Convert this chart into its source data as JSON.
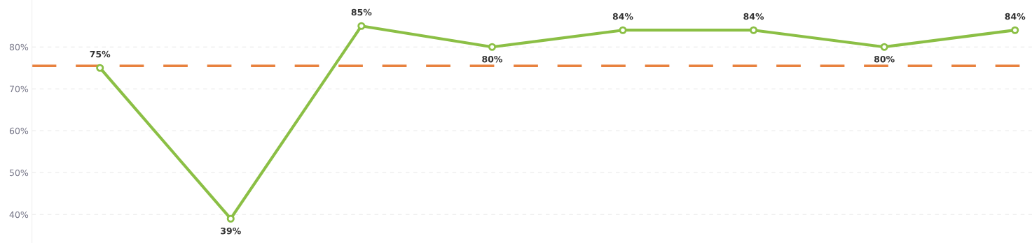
{
  "chart_data": {
    "type": "line",
    "categories": [
      null,
      null,
      null,
      null,
      null,
      null,
      null,
      null
    ],
    "series": [
      {
        "color": "#8bbf45",
        "values": [
          75,
          39,
          85,
          80,
          84,
          84,
          80,
          84
        ]
      }
    ],
    "ylim": [
      33.2,
      91.2
    ],
    "yticks": [
      {
        "value": 40,
        "label": "40%"
      },
      {
        "value": 50,
        "label": "50%"
      },
      {
        "value": 60,
        "label": "60%"
      },
      {
        "value": 70,
        "label": "70%"
      },
      {
        "value": 80,
        "label": "80%"
      }
    ],
    "value_labels": [
      "75%",
      "39%",
      "85%",
      "80%",
      "84%",
      "84%",
      "80%",
      "84%"
    ],
    "ref_lines": [
      {
        "axis": "y",
        "value": 75.5,
        "color": "#e8823f",
        "line_style": "dashed"
      }
    ],
    "grid": "y",
    "tick_labels": "y",
    "marker": "circle",
    "line_style": "solid",
    "legend": false
  }
}
